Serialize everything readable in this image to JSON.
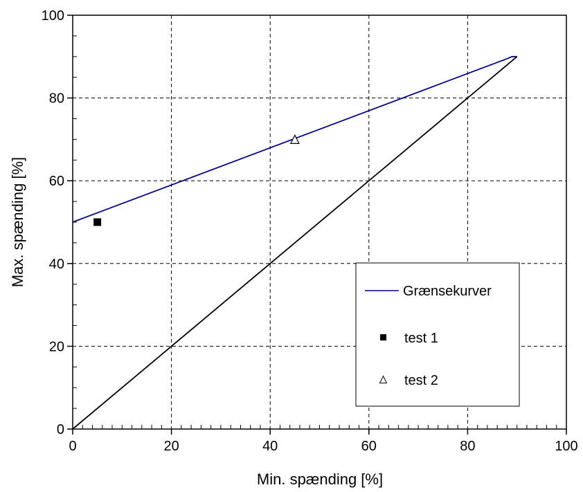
{
  "chart_data": {
    "type": "line",
    "title": "",
    "xlabel": "Min. spænding [%]",
    "ylabel": "Max. spænding [%]",
    "xlim": [
      0,
      100
    ],
    "ylim": [
      0,
      100
    ],
    "xticks": [
      0,
      20,
      40,
      60,
      80,
      100
    ],
    "yticks": [
      0,
      20,
      40,
      60,
      80,
      100
    ],
    "grid": true,
    "legend_position": "bottom-right",
    "series": [
      {
        "name": "Grænsekurver",
        "kind": "line",
        "color": "#000080",
        "x": [
          0,
          88,
          89,
          90
        ],
        "y": [
          50,
          89.5,
          90,
          90
        ]
      },
      {
        "name": "",
        "kind": "line",
        "color": "#000000",
        "x": [
          0,
          90
        ],
        "y": [
          0,
          90
        ]
      },
      {
        "name": "test 1",
        "kind": "scatter",
        "marker": "filled-square",
        "color": "#000000",
        "x": [
          5
        ],
        "y": [
          50
        ]
      },
      {
        "name": "test 2",
        "kind": "scatter",
        "marker": "open-triangle",
        "color": "#000000",
        "x": [
          45
        ],
        "y": [
          70
        ]
      }
    ]
  }
}
